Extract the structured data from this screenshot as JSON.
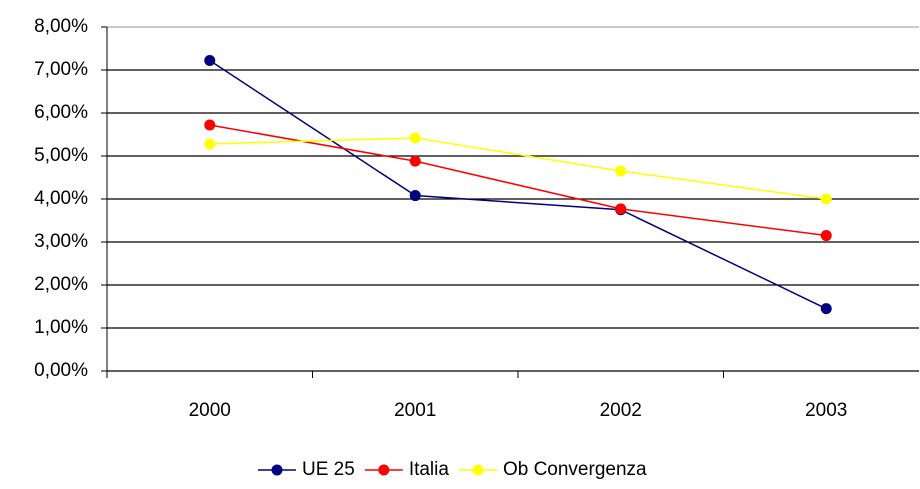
{
  "chart_data": {
    "type": "line",
    "categories": [
      "2000",
      "2001",
      "2002",
      "2003"
    ],
    "series": [
      {
        "name": "UE 25",
        "color": "#000080",
        "values": [
          7.22,
          4.08,
          3.75,
          1.45
        ]
      },
      {
        "name": "Italia",
        "color": "#ff0000",
        "values": [
          5.72,
          4.88,
          3.77,
          3.15
        ]
      },
      {
        "name": "Ob Convergenza",
        "color": "#ffff00",
        "values": [
          5.28,
          5.42,
          4.65,
          4.0
        ]
      }
    ],
    "ylim": [
      0,
      8
    ],
    "yticks": [
      {
        "value": 0,
        "label": "0,00%"
      },
      {
        "value": 1,
        "label": "1,00%"
      },
      {
        "value": 2,
        "label": "2,00%"
      },
      {
        "value": 3,
        "label": "3,00%"
      },
      {
        "value": 4,
        "label": "4,00%"
      },
      {
        "value": 5,
        "label": "5,00%"
      },
      {
        "value": 6,
        "label": "6,00%"
      },
      {
        "value": 7,
        "label": "7,00%"
      },
      {
        "value": 8,
        "label": "8,00%"
      }
    ],
    "grid": true,
    "legend": "bottom"
  }
}
